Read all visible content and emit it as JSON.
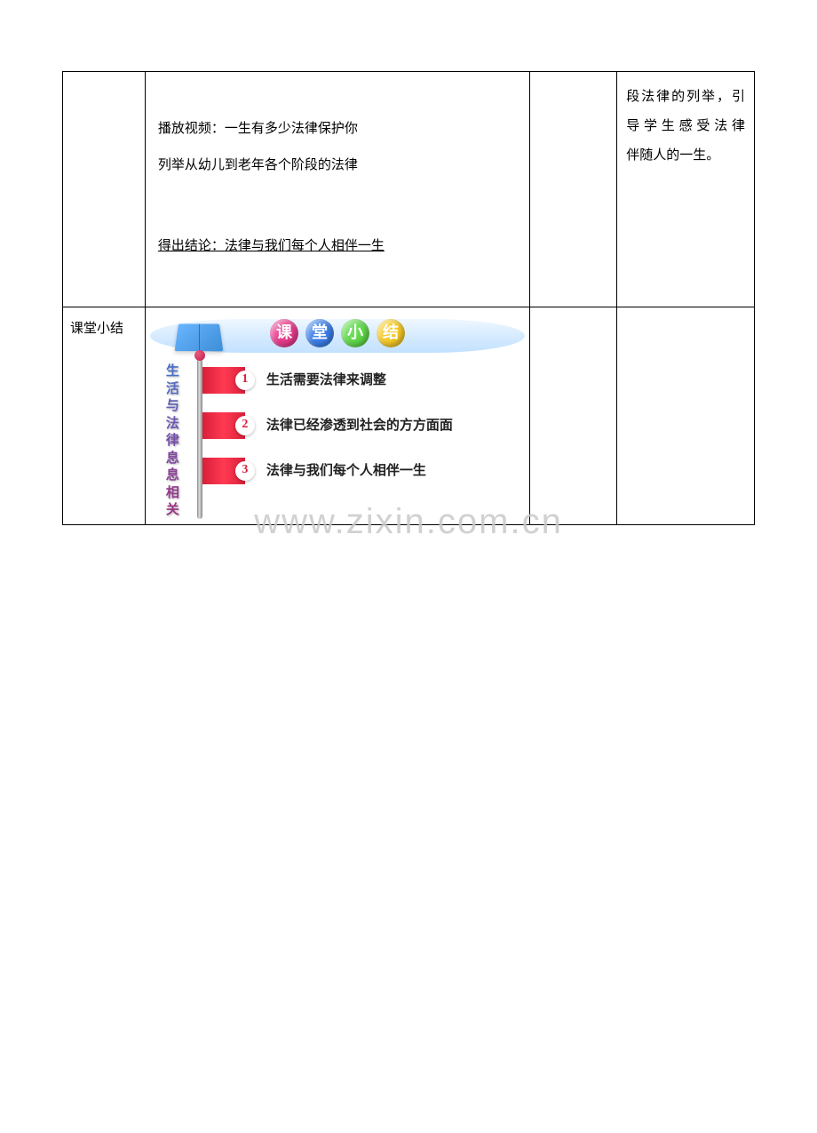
{
  "row1": {
    "col2": {
      "line1_a": "播放视频：一生有多少法律保护你",
      "line1_b": "列举从幼儿到老年各个阶段的法律",
      "conclusion": "得出结论：法律与我们每个人相伴一生"
    },
    "col4": {
      "line1": "段法律的列举，引",
      "line2": "导学生感受法律",
      "line3": "伴随人的一生。"
    }
  },
  "row2": {
    "col1": "课堂小结",
    "summary": {
      "title_chars": [
        "课",
        "堂",
        "小",
        "结"
      ],
      "ball_colors": [
        "#e83a8c",
        "#3a7de8",
        "#5fd84a",
        "#f5c926"
      ],
      "vertical_label": [
        "生",
        "活",
        "与",
        "法",
        "律",
        "息",
        "息",
        "相",
        "关"
      ],
      "vertical_colors": [
        "#4a6fc7",
        "#5569c0",
        "#6060b8",
        "#6b57b0",
        "#754ea8",
        "#7f489f",
        "#894296",
        "#933b8d",
        "#9c3484"
      ],
      "points": [
        {
          "num": "1",
          "text": "生活需要法律来调整"
        },
        {
          "num": "2",
          "text": "法律已经渗透到社会的方方面面"
        },
        {
          "num": "3",
          "text": "法律与我们每个人相伴一生"
        }
      ]
    }
  },
  "watermark": "www.zixin.com.cn"
}
